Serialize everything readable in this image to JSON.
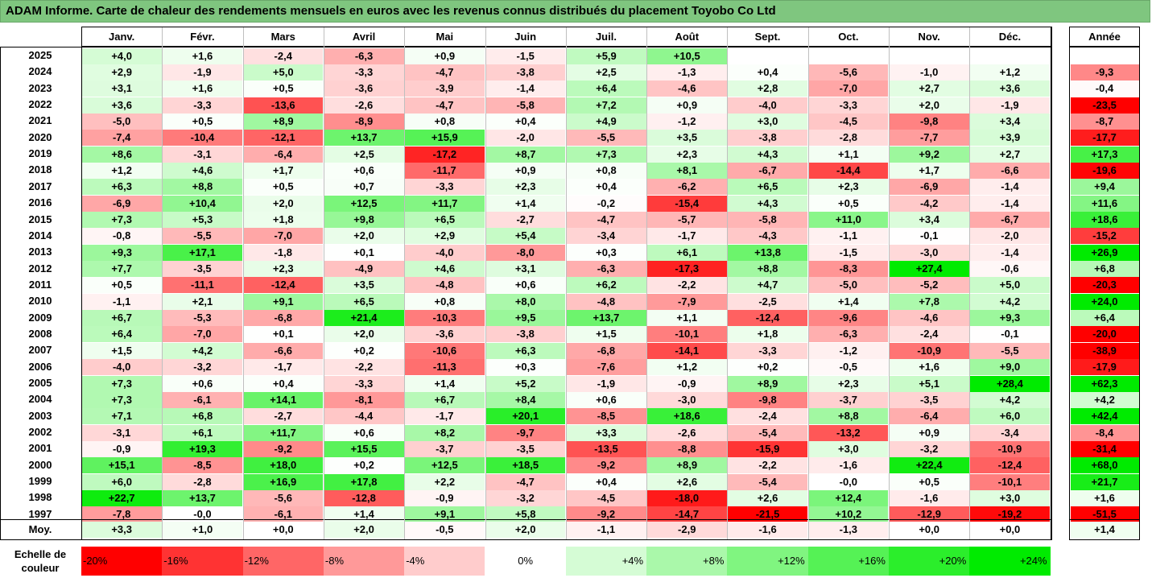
{
  "title": "ADAM Informe. Carte de chaleur des rendements mensuels en euros avec les revenus connus distribués du placement Toyobo Co Ltd",
  "colors": {
    "title_bg": "#7fc67f",
    "positive_max": "#00e000",
    "negative_max": "#ff0000",
    "neutral": "#ffffff"
  },
  "chart_data": {
    "type": "heatmap",
    "columns": [
      "Janv.",
      "Févr.",
      "Mars",
      "Avril",
      "Mai",
      "Juin",
      "Juil.",
      "Août",
      "Sept.",
      "Oct.",
      "Nov.",
      "Déc."
    ],
    "year_header": "Année",
    "rows": [
      {
        "label": "2025",
        "values": [
          "+4,0",
          "+1,6",
          "-2,4",
          "-6,3",
          "+0,9",
          "-1,5",
          "+5,9",
          "+10,5",
          "",
          "",
          "",
          ""
        ],
        "year": ""
      },
      {
        "label": "2024",
        "values": [
          "+2,9",
          "-1,9",
          "+5,0",
          "-3,3",
          "-4,7",
          "-3,8",
          "+2,5",
          "-1,3",
          "+0,4",
          "-5,6",
          "-1,0",
          "+1,2"
        ],
        "year": "-9,3"
      },
      {
        "label": "2023",
        "values": [
          "+3,1",
          "+1,6",
          "+0,5",
          "-3,6",
          "-3,9",
          "-1,4",
          "+6,4",
          "-4,6",
          "+2,8",
          "-7,0",
          "+2,7",
          "+3,6"
        ],
        "year": "-0,4"
      },
      {
        "label": "2022",
        "values": [
          "+3,6",
          "-3,3",
          "-13,6",
          "-2,6",
          "-4,7",
          "-5,8",
          "+7,2",
          "+0,9",
          "-4,0",
          "-3,3",
          "+2,0",
          "-1,9"
        ],
        "year": "-23,5"
      },
      {
        "label": "2021",
        "values": [
          "-5,0",
          "+0,5",
          "+8,9",
          "-8,9",
          "+0,8",
          "+0,4",
          "+4,9",
          "-1,2",
          "+3,0",
          "-4,5",
          "-9,8",
          "+3,4"
        ],
        "year": "-8,7"
      },
      {
        "label": "2020",
        "values": [
          "-7,4",
          "-10,4",
          "-12,1",
          "+13,7",
          "+15,9",
          "-2,0",
          "-5,5",
          "+3,5",
          "-3,8",
          "-2,8",
          "-7,7",
          "+3,9"
        ],
        "year": "-17,7"
      },
      {
        "label": "2019",
        "values": [
          "+8,6",
          "-3,1",
          "-6,4",
          "+2,5",
          "-17,2",
          "+8,7",
          "+7,3",
          "+2,3",
          "+4,3",
          "+1,1",
          "+9,2",
          "+2,7"
        ],
        "year": "+17,3"
      },
      {
        "label": "2018",
        "values": [
          "+1,2",
          "+4,6",
          "+1,7",
          "+0,6",
          "-11,7",
          "+0,9",
          "+0,8",
          "+8,1",
          "-6,7",
          "-14,4",
          "+1,7",
          "-6,6"
        ],
        "year": "-19,6"
      },
      {
        "label": "2017",
        "values": [
          "+6,3",
          "+8,8",
          "+0,5",
          "+0,7",
          "-3,3",
          "+2,3",
          "+0,4",
          "-6,2",
          "+6,5",
          "+2,3",
          "-6,9",
          "-1,4"
        ],
        "year": "+9,4"
      },
      {
        "label": "2016",
        "values": [
          "-6,9",
          "+10,4",
          "+2,0",
          "+12,5",
          "+11,7",
          "+1,4",
          "-0,2",
          "-15,4",
          "+4,3",
          "+0,5",
          "-4,2",
          "-1,4"
        ],
        "year": "+11,6"
      },
      {
        "label": "2015",
        "values": [
          "+7,3",
          "+5,3",
          "+1,8",
          "+9,8",
          "+6,5",
          "-2,7",
          "-4,7",
          "-5,7",
          "-5,8",
          "+11,0",
          "+3,4",
          "-6,7"
        ],
        "year": "+18,6"
      },
      {
        "label": "2014",
        "values": [
          "-0,8",
          "-5,5",
          "-7,0",
          "+2,0",
          "+2,9",
          "+5,4",
          "-3,4",
          "-1,7",
          "-4,3",
          "-1,1",
          "-0,1",
          "-2,0"
        ],
        "year": "-15,2"
      },
      {
        "label": "2013",
        "values": [
          "+9,3",
          "+17,1",
          "-1,8",
          "+0,1",
          "-4,0",
          "-8,0",
          "+0,3",
          "+6,1",
          "+13,8",
          "-1,5",
          "-3,0",
          "-1,4"
        ],
        "year": "+26,9"
      },
      {
        "label": "2012",
        "values": [
          "+7,7",
          "-3,5",
          "+2,3",
          "-4,9",
          "+4,6",
          "+3,1",
          "-6,3",
          "-17,3",
          "+8,8",
          "-8,3",
          "+27,4",
          "-0,6"
        ],
        "year": "+6,8"
      },
      {
        "label": "2011",
        "values": [
          "+0,5",
          "-11,1",
          "-12,4",
          "+3,5",
          "-4,8",
          "+0,6",
          "+6,2",
          "-2,2",
          "+4,7",
          "-5,0",
          "-5,2",
          "+5,0"
        ],
        "year": "-20,3"
      },
      {
        "label": "2010",
        "values": [
          "-1,1",
          "+2,1",
          "+9,1",
          "+6,5",
          "+0,8",
          "+8,0",
          "-4,8",
          "-7,9",
          "-2,5",
          "+1,4",
          "+7,8",
          "+4,2"
        ],
        "year": "+24,0"
      },
      {
        "label": "2009",
        "values": [
          "+6,7",
          "-5,3",
          "-6,8",
          "+21,4",
          "-10,3",
          "+9,5",
          "+13,7",
          "+1,1",
          "-12,4",
          "-9,6",
          "-4,6",
          "+9,3"
        ],
        "year": "+6,4"
      },
      {
        "label": "2008",
        "values": [
          "+6,4",
          "-7,0",
          "+0,1",
          "+2,0",
          "-3,6",
          "-3,8",
          "+1,5",
          "-10,1",
          "+1,8",
          "-6,3",
          "-2,4",
          "-0,1"
        ],
        "year": "-20,0"
      },
      {
        "label": "2007",
        "values": [
          "+1,5",
          "+4,2",
          "-6,6",
          "+0,2",
          "-10,6",
          "+6,3",
          "-6,8",
          "-14,1",
          "-3,3",
          "-1,2",
          "-10,9",
          "-5,5"
        ],
        "year": "-38,9"
      },
      {
        "label": "2006",
        "values": [
          "-4,0",
          "-3,2",
          "-1,7",
          "-2,2",
          "-11,3",
          "+0,3",
          "-7,6",
          "+1,2",
          "+0,2",
          "-0,5",
          "+1,6",
          "+9,0"
        ],
        "year": "-17,9"
      },
      {
        "label": "2005",
        "values": [
          "+7,3",
          "+0,6",
          "+0,4",
          "-3,3",
          "+1,4",
          "+5,2",
          "-1,9",
          "-0,9",
          "+8,9",
          "+2,3",
          "+5,1",
          "+28,4"
        ],
        "year": "+62,3"
      },
      {
        "label": "2004",
        "values": [
          "+7,3",
          "-6,1",
          "+14,1",
          "-8,1",
          "+6,7",
          "+8,4",
          "+0,6",
          "-3,0",
          "-9,8",
          "-3,7",
          "-3,5",
          "+4,2"
        ],
        "year": "+4,2"
      },
      {
        "label": "2003",
        "values": [
          "+7,1",
          "+6,8",
          "-2,7",
          "-4,4",
          "-1,7",
          "+20,1",
          "-8,5",
          "+18,6",
          "-2,4",
          "+8,8",
          "-6,4",
          "+6,0"
        ],
        "year": "+42,4"
      },
      {
        "label": "2002",
        "values": [
          "-3,1",
          "+6,1",
          "+11,7",
          "+0,6",
          "+8,2",
          "-9,7",
          "+3,3",
          "-2,6",
          "-5,4",
          "-13,2",
          "+0,9",
          "-3,4"
        ],
        "year": "-8,4"
      },
      {
        "label": "2001",
        "values": [
          "-0,9",
          "+19,3",
          "-9,2",
          "+15,5",
          "-3,7",
          "-3,5",
          "-13,5",
          "-8,8",
          "-15,9",
          "+3,0",
          "-3,2",
          "-10,9"
        ],
        "year": "-31,4"
      },
      {
        "label": "2000",
        "values": [
          "+15,1",
          "-8,5",
          "+18,0",
          "+0,2",
          "+12,5",
          "+18,5",
          "-9,2",
          "+8,9",
          "-2,2",
          "-1,6",
          "+22,4",
          "-12,4"
        ],
        "year": "+68,0"
      },
      {
        "label": "1999",
        "values": [
          "+6,0",
          "-2,8",
          "+16,9",
          "+17,8",
          "+2,2",
          "-4,7",
          "+0,4",
          "+2,6",
          "-5,4",
          "-0,0",
          "+0,5",
          "-10,1"
        ],
        "year": "+21,7"
      },
      {
        "label": "1998",
        "values": [
          "+22,7",
          "+13,7",
          "-5,6",
          "-12,8",
          "-0,9",
          "-3,2",
          "-4,5",
          "-18,0",
          "+2,6",
          "+12,4",
          "-1,6",
          "+3,0"
        ],
        "year": "+1,6"
      },
      {
        "label": "1997",
        "values": [
          "-7,8",
          "-0,0",
          "-6,1",
          "+1,4",
          "+9,1",
          "+5,8",
          "-9,2",
          "-14,7",
          "-21,5",
          "+10,2",
          "-12,9",
          "-19,2"
        ],
        "year": "-51,5"
      }
    ],
    "average": {
      "label": "Moy.",
      "values": [
        "+3,3",
        "+1,0",
        "+0,0",
        "+2,0",
        "-0,5",
        "+2,0",
        "-1,1",
        "-2,9",
        "-1,6",
        "-1,3",
        "+0,0",
        "+0,0"
      ],
      "year": "+1,4"
    },
    "legend": {
      "title_line1": "Echelle de",
      "title_line2": "couleur",
      "steps": [
        {
          "label": "-20%",
          "value": -20
        },
        {
          "label": "-16%",
          "value": -16
        },
        {
          "label": "-12%",
          "value": -12
        },
        {
          "label": "-8%",
          "value": -8
        },
        {
          "label": "-4%",
          "value": -4
        },
        {
          "label": "0%",
          "value": 0
        },
        {
          "label": "+4%",
          "value": 4
        },
        {
          "label": "+8%",
          "value": 8
        },
        {
          "label": "+12%",
          "value": 12
        },
        {
          "label": "+16%",
          "value": 16
        },
        {
          "label": "+20%",
          "value": 20
        },
        {
          "label": "+24%",
          "value": 24
        }
      ]
    }
  }
}
